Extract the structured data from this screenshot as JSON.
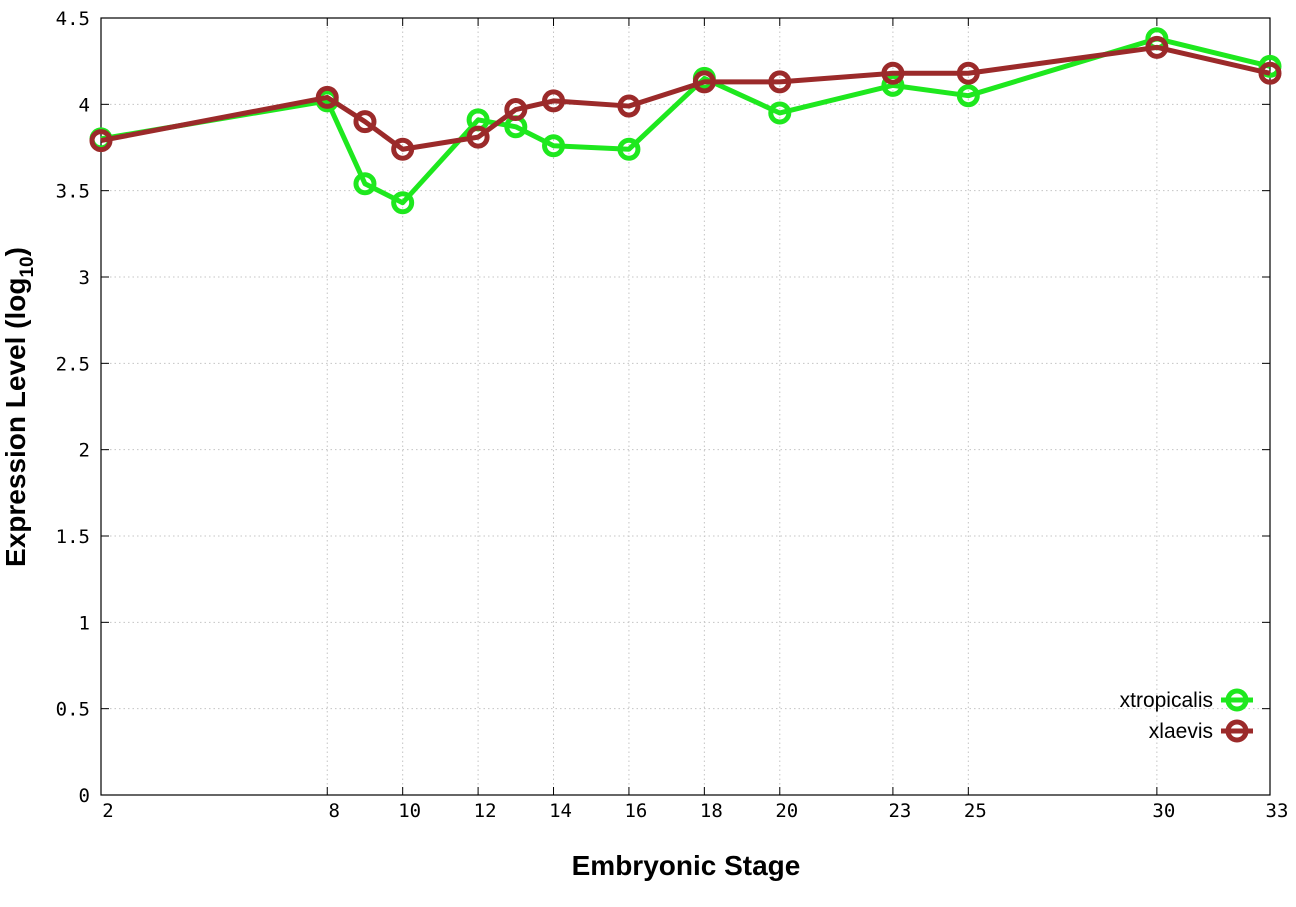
{
  "chart_data": {
    "type": "line",
    "title": "",
    "xlabel": "Embryonic Stage",
    "ylabel": "Expression Level (log",
    "ylabel_subscript": "10",
    "ylabel_close": ")",
    "x_tick_labels": [
      "2",
      "8",
      "10",
      "12",
      "14",
      "16",
      "18",
      "20",
      "23",
      "25",
      "30",
      "33"
    ],
    "y_tick_labels": [
      "0",
      "0.5",
      "1",
      "1.5",
      "2",
      "2.5",
      "3",
      "3.5",
      "4",
      "4.5"
    ],
    "ylim": [
      0,
      4.5
    ],
    "grid": true,
    "legend_position": "bottom-right",
    "x": [
      "2",
      "8",
      "9",
      "10",
      "12",
      "13",
      "14",
      "16",
      "18",
      "20",
      "23",
      "25",
      "30",
      "33"
    ],
    "series": [
      {
        "name": "xtropicalis",
        "color": "#1ee81e",
        "values": [
          3.8,
          4.02,
          3.54,
          3.43,
          3.91,
          3.87,
          3.76,
          3.74,
          4.15,
          3.95,
          4.11,
          4.05,
          4.38,
          4.22
        ]
      },
      {
        "name": "xlaevis",
        "color": "#9b2a2a",
        "values": [
          3.79,
          4.04,
          3.9,
          3.74,
          3.81,
          3.97,
          4.02,
          3.99,
          4.13,
          4.13,
          4.18,
          4.18,
          4.33,
          4.18
        ]
      }
    ]
  }
}
